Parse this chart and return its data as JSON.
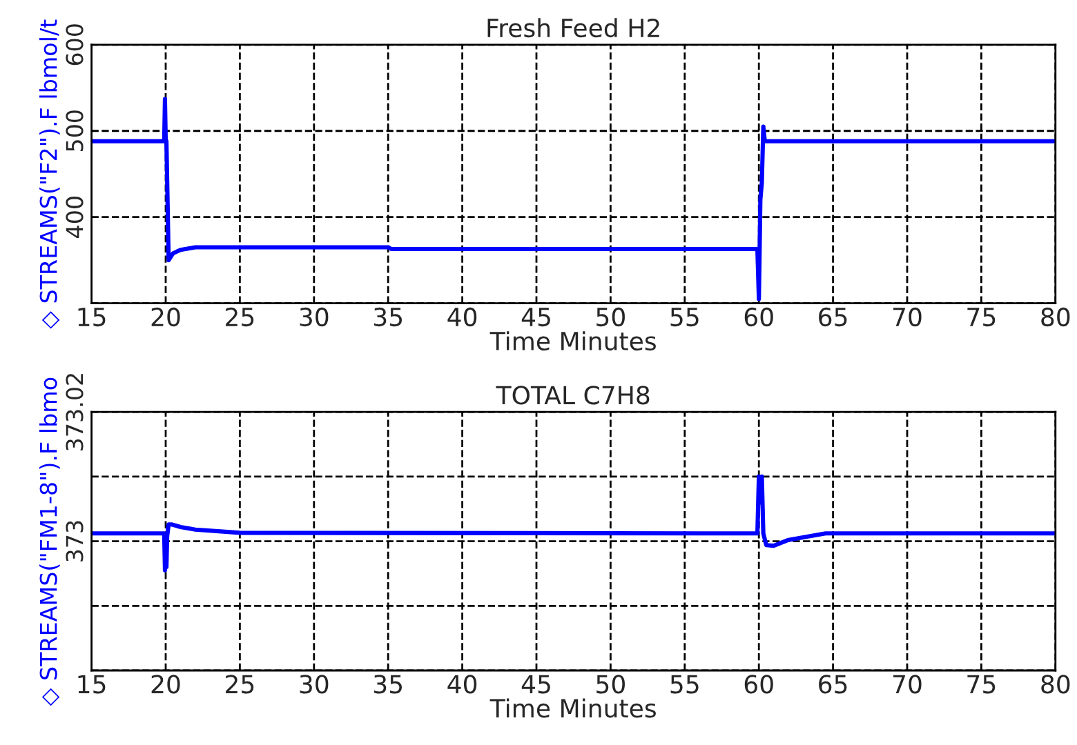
{
  "chart_data": [
    {
      "type": "line",
      "title": "Fresh Feed H2",
      "xlabel": "Time Minutes",
      "ylabel": "◇ STREAMS(\"F2\").F lbmol/t",
      "series": [
        {
          "color": "#0000ff",
          "x": [
            15,
            19.9,
            19.95,
            20.0,
            20.05,
            20.2,
            20.5,
            21,
            22,
            35,
            35.2,
            59.9,
            60.0,
            60.05,
            60.1,
            60.2,
            60.3,
            60.4,
            80
          ],
          "values": [
            488,
            488,
            537,
            490,
            488,
            350,
            358,
            362,
            365,
            365,
            363,
            363,
            305,
            360,
            420,
            440,
            505,
            488,
            488
          ]
        }
      ],
      "xlim": [
        15,
        80
      ],
      "xticks": [
        15,
        20,
        25,
        30,
        35,
        40,
        45,
        50,
        55,
        60,
        65,
        70,
        75,
        80
      ],
      "ylim": [
        300,
        600
      ],
      "yticks": [
        {
          "value": 300,
          "label": null
        },
        400,
        500,
        600
      ],
      "grid": true
    },
    {
      "type": "line",
      "title": "TOTAL C7H8",
      "xlabel": "Time Minutes",
      "ylabel": "◇ STREAMS(\"FM1-8\").F lbmo",
      "series": [
        {
          "color": "#0000ff",
          "x": [
            15,
            19.9,
            19.95,
            20.0,
            20.05,
            20.1,
            20.2,
            20.4,
            21,
            22,
            25,
            59.9,
            60.0,
            60.1,
            60.2,
            60.3,
            60.5,
            61,
            62,
            64.5,
            80
          ],
          "values": [
            373.0012,
            373.0012,
            372.9955,
            373.0005,
            372.996,
            373.0008,
            373.0026,
            373.0026,
            373.0022,
            373.0018,
            373.0013,
            373.0012,
            373.01,
            373.006,
            373.01,
            373.0012,
            372.9994,
            372.9993,
            373.0002,
            373.0012,
            373.0012
          ]
        }
      ],
      "xlim": [
        15,
        80
      ],
      "xticks": [
        15,
        20,
        25,
        30,
        35,
        40,
        45,
        50,
        55,
        60,
        65,
        70,
        75,
        80
      ],
      "ylim": [
        372.98,
        373.02
      ],
      "yticks": [
        {
          "value": 372.98,
          "label": null
        },
        {
          "value": 372.99,
          "label": null
        },
        373,
        {
          "value": 373.01,
          "label": null
        },
        373.02
      ],
      "grid": true
    }
  ]
}
